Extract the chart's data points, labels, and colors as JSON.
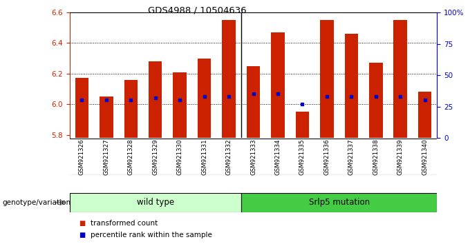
{
  "title": "GDS4988 / 10504636",
  "samples": [
    "GSM921326",
    "GSM921327",
    "GSM921328",
    "GSM921329",
    "GSM921330",
    "GSM921331",
    "GSM921332",
    "GSM921333",
    "GSM921334",
    "GSM921335",
    "GSM921336",
    "GSM921337",
    "GSM921338",
    "GSM921339",
    "GSM921340"
  ],
  "transformed_count": [
    6.17,
    6.05,
    6.16,
    6.28,
    6.21,
    6.3,
    6.55,
    6.25,
    6.47,
    5.95,
    6.55,
    6.46,
    6.27,
    6.55,
    6.08
  ],
  "percentile": [
    30,
    30,
    30,
    32,
    30,
    33,
    33,
    35,
    35,
    27,
    33,
    33,
    33,
    33,
    30
  ],
  "ylim_left": [
    5.78,
    6.6
  ],
  "ylim_right": [
    0,
    100
  ],
  "yticks_left": [
    5.8,
    6.0,
    6.2,
    6.4,
    6.6
  ],
  "yticks_right": [
    0,
    25,
    50,
    75,
    100
  ],
  "ytick_labels_right": [
    "0",
    "25",
    "50",
    "75",
    "100%"
  ],
  "bar_color": "#cc2200",
  "percentile_color": "#0000cc",
  "bar_bottom": 5.78,
  "wild_type_count": 7,
  "wild_type_label": "wild type",
  "mutation_label": "Srlp5 mutation",
  "genotype_label": "genotype/variation",
  "legend_count_label": "transformed count",
  "legend_percentile_label": "percentile rank within the sample",
  "bg_gray": "#c8c8c8",
  "wt_fill": "#ccffcc",
  "mut_fill": "#44cc44",
  "axis_color_left": "#cc2200",
  "axis_color_right": "#0000cc",
  "bar_width": 0.55,
  "grid_yticks": [
    6.0,
    6.2,
    6.4
  ]
}
